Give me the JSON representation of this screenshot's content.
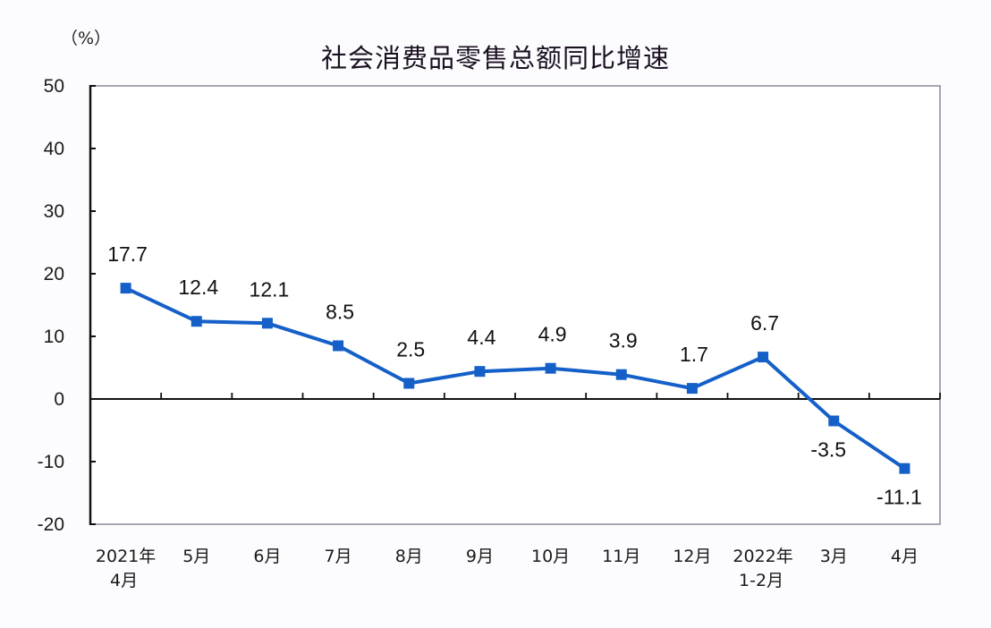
{
  "chart_data": {
    "type": "line",
    "title": "社会消费品零售总额同比增速",
    "unit_label": "（%）",
    "xlabel": "",
    "ylabel": "%",
    "ylim": [
      -20,
      50
    ],
    "yticks": [
      50,
      40,
      30,
      20,
      10,
      0,
      -10,
      -20
    ],
    "grid": false,
    "legend": null,
    "categories": [
      "2021年4月",
      "5月",
      "6月",
      "7月",
      "8月",
      "9月",
      "10月",
      "11月",
      "12月",
      "2022年1-2月",
      "3月",
      "4月"
    ],
    "category_labels": [
      [
        "2021年",
        "4月"
      ],
      [
        "5月"
      ],
      [
        "6月"
      ],
      [
        "7月"
      ],
      [
        "8月"
      ],
      [
        "9月"
      ],
      [
        "10月"
      ],
      [
        "11月"
      ],
      [
        "12月"
      ],
      [
        "2022年",
        "1-2月"
      ],
      [
        "3月"
      ],
      [
        "4月"
      ]
    ],
    "series": [
      {
        "name": "社会消费品零售总额同比增速",
        "color": "#1560c8",
        "marker": "square",
        "values": [
          17.7,
          12.4,
          12.1,
          8.5,
          2.5,
          4.4,
          4.9,
          3.9,
          1.7,
          6.7,
          -3.5,
          -11.1
        ],
        "labels": [
          "17.7",
          "12.4",
          "12.1",
          "8.5",
          "2.5",
          "4.4",
          "4.9",
          "3.9",
          "1.7",
          "6.7",
          "-3.5",
          "-11.1"
        ]
      }
    ]
  }
}
